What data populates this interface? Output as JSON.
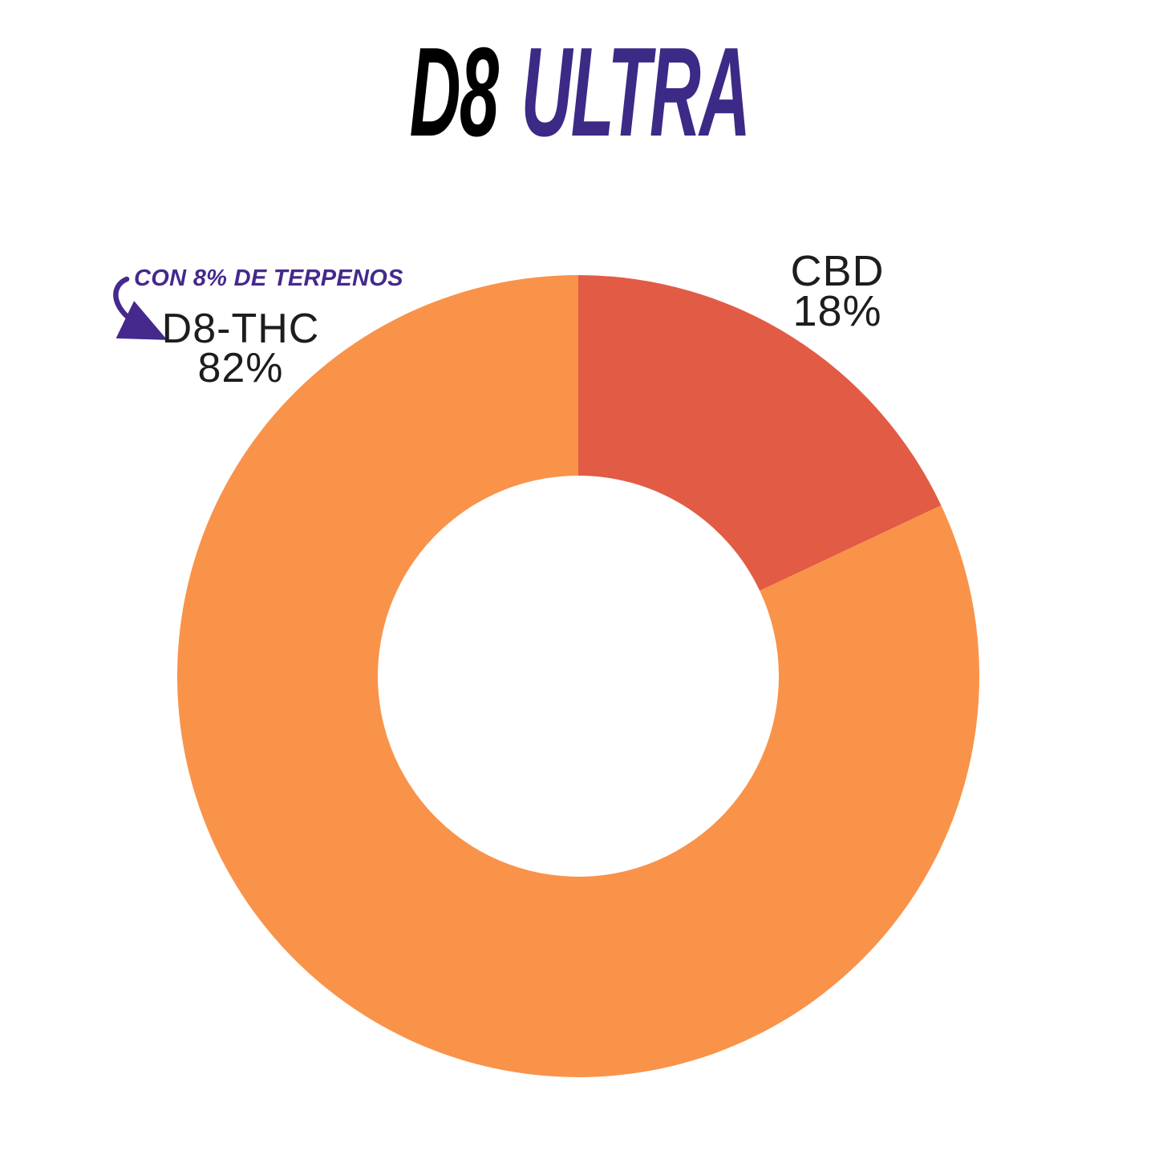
{
  "page": {
    "background_color": "#ffffff"
  },
  "title": {
    "part1": "D8",
    "part2": "ULTRA",
    "part1_color": "#000000",
    "part2_color": "#3c2a86"
  },
  "annotation": {
    "text": "CON 8% DE TERPENOS",
    "color": "#45298c",
    "arrow": "curved-arrow pointing from text down to D8-THC label"
  },
  "chart_data": {
    "type": "pie",
    "variant": "donut",
    "title": "D8 ULTRA",
    "inner_radius_ratio": 0.5,
    "start_angle_deg": 0,
    "direction": "clockwise",
    "legend_position": "none",
    "grid": false,
    "categories": [
      "CBD",
      "D8-THC"
    ],
    "values": [
      18,
      82
    ],
    "slices": [
      {
        "label": "CBD",
        "value": 18,
        "pct_label": "18%",
        "color": "#e25b45"
      },
      {
        "label": "D8-THC",
        "value": 82,
        "pct_label": "82%",
        "color": "#f9934a"
      }
    ]
  }
}
